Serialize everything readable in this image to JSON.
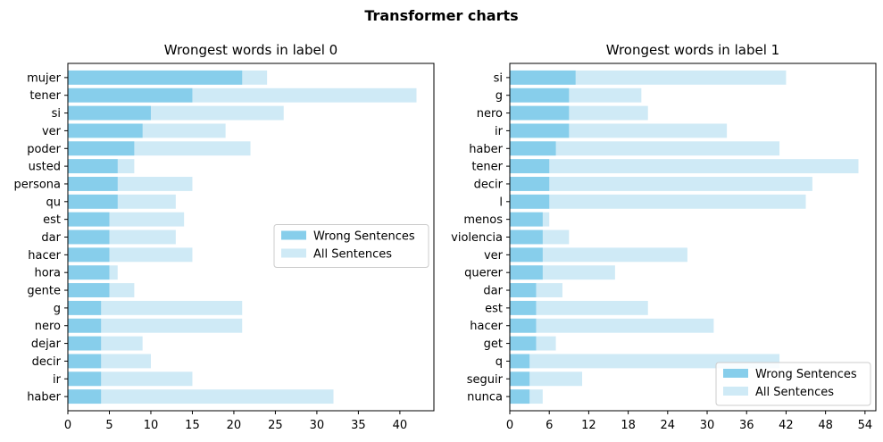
{
  "figure": {
    "title": "Transformer charts"
  },
  "colors": {
    "wrong": "#87ceeb",
    "all": "#cfeaf6",
    "axes": "#000000",
    "background": "#ffffff"
  },
  "chart_data": [
    {
      "type": "bar",
      "orientation": "horizontal",
      "title": "Wrongest words in label 0",
      "categories": [
        "mujer",
        "tener",
        "si",
        "ver",
        "poder",
        "usted",
        "persona",
        "qu",
        "est",
        "dar",
        "hacer",
        "hora",
        "gente",
        "g",
        "nero",
        "dejar",
        "decir",
        "ir",
        "haber"
      ],
      "series": [
        {
          "name": "All Sentences",
          "values": [
            24,
            42,
            26,
            19,
            22,
            8,
            15,
            13,
            14,
            13,
            15,
            6,
            8,
            21,
            21,
            9,
            10,
            15,
            32
          ]
        },
        {
          "name": "Wrong Sentences",
          "values": [
            21,
            15,
            10,
            9,
            8,
            6,
            6,
            6,
            5,
            5,
            5,
            5,
            5,
            4,
            4,
            4,
            4,
            4,
            4
          ]
        }
      ],
      "xticks": [
        0,
        5,
        10,
        15,
        20,
        25,
        30,
        35,
        40
      ],
      "xlim": [
        0,
        44.1
      ],
      "legend": {
        "position": "center-right",
        "entries": [
          "Wrong Sentences",
          "All Sentences"
        ]
      }
    },
    {
      "type": "bar",
      "orientation": "horizontal",
      "title": "Wrongest words in label 1",
      "categories": [
        "si",
        "g",
        "nero",
        "ir",
        "haber",
        "tener",
        "decir",
        "l",
        "menos",
        "violencia",
        "ver",
        "querer",
        "dar",
        "est",
        "hacer",
        "get",
        "q",
        "seguir",
        "nunca"
      ],
      "series": [
        {
          "name": "All Sentences",
          "values": [
            42,
            20,
            21,
            33,
            41,
            53,
            46,
            45,
            6,
            9,
            27,
            16,
            8,
            21,
            31,
            7,
            41,
            11,
            5
          ]
        },
        {
          "name": "Wrong Sentences",
          "values": [
            10,
            9,
            9,
            9,
            7,
            6,
            6,
            6,
            5,
            5,
            5,
            5,
            4,
            4,
            4,
            4,
            3,
            3,
            3
          ]
        }
      ],
      "xticks": [
        0,
        6,
        12,
        18,
        24,
        30,
        36,
        42,
        48,
        54
      ],
      "xlim": [
        0,
        55.65
      ],
      "legend": {
        "position": "lower-right",
        "entries": [
          "Wrong Sentences",
          "All Sentences"
        ]
      }
    }
  ]
}
